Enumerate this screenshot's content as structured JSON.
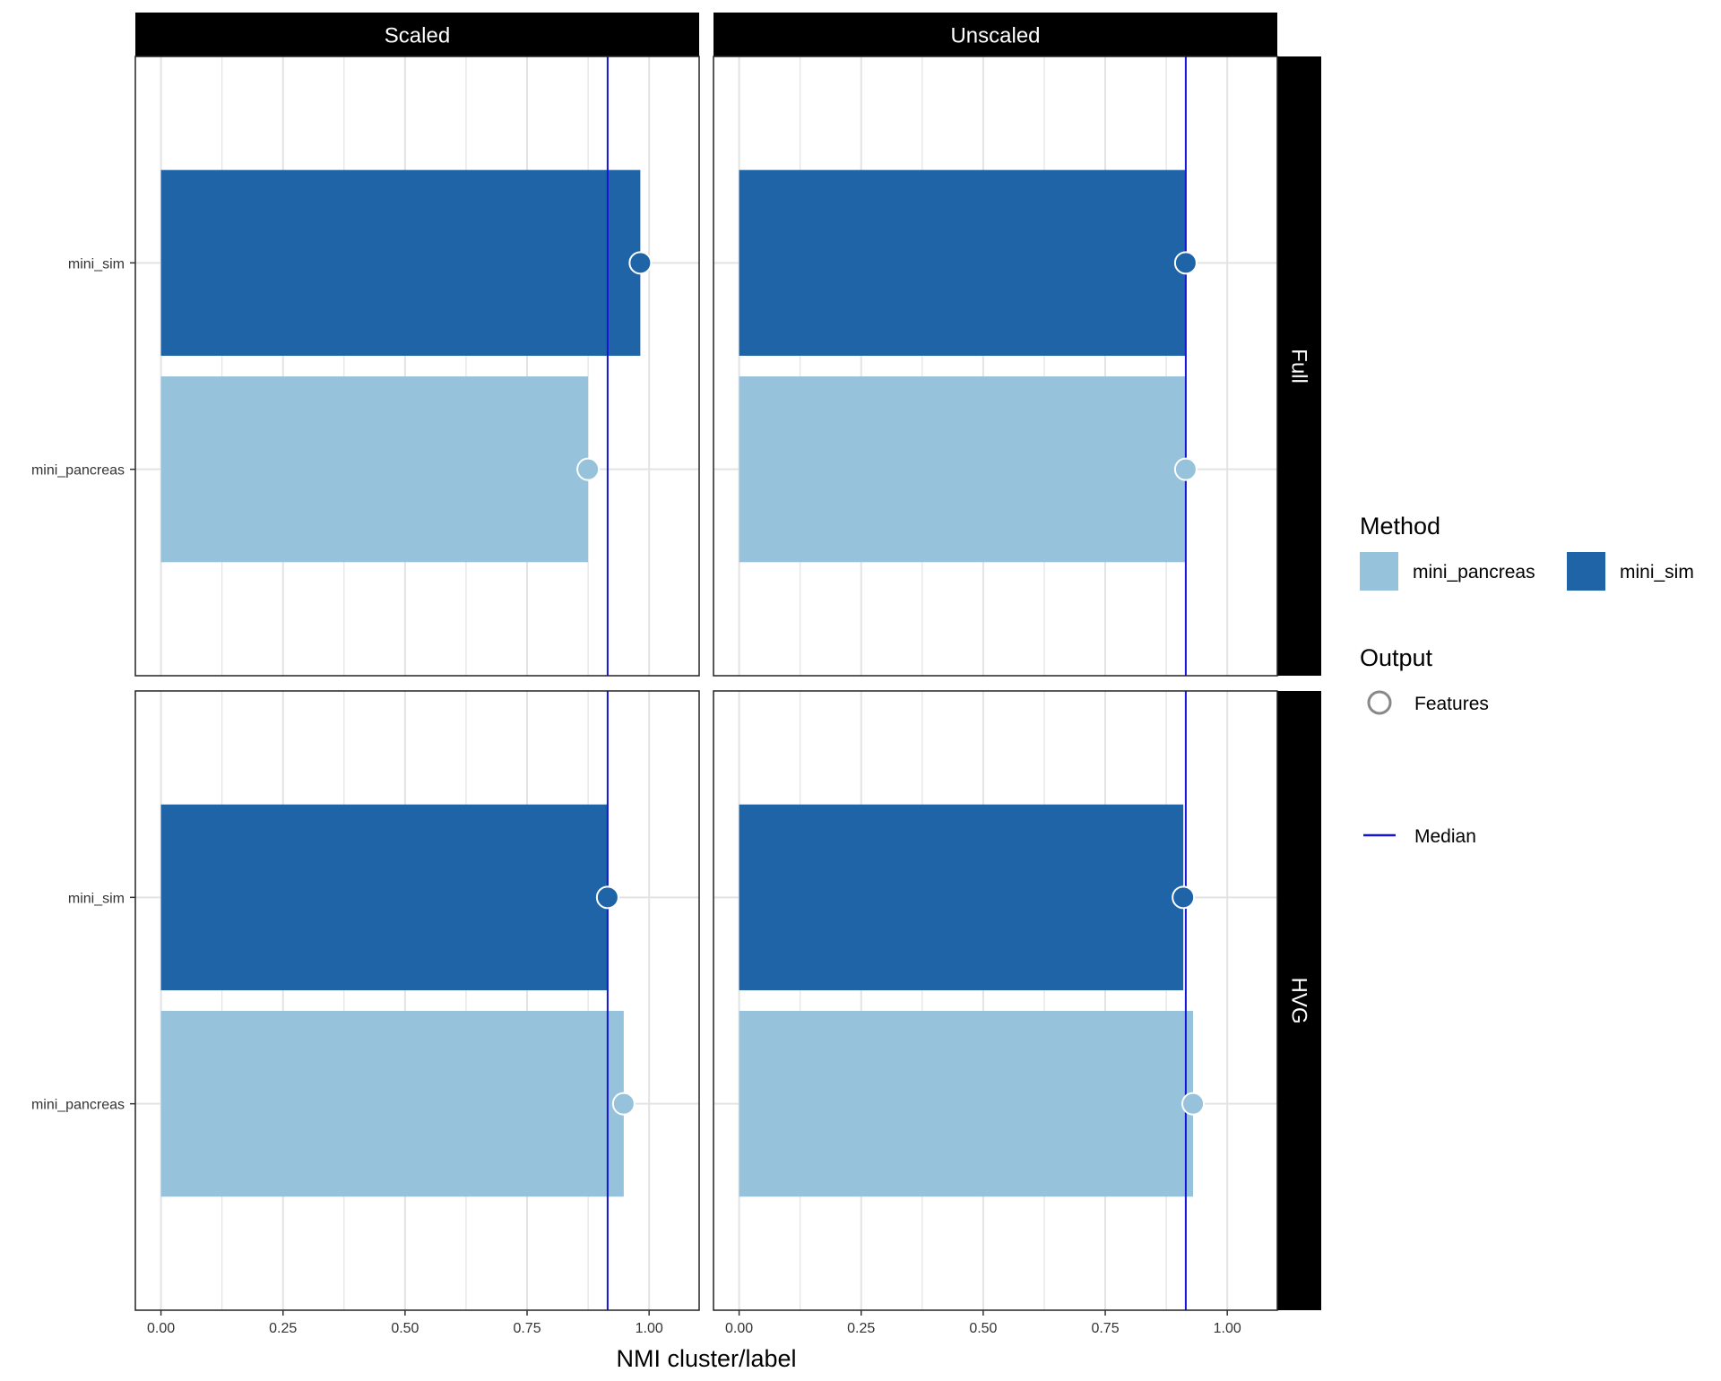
{
  "chart_data": {
    "type": "bar",
    "orientation": "horizontal",
    "xlabel": "NMI cluster/label",
    "ylabel": "",
    "xlim": [
      0,
      1.05
    ],
    "x_ticks": [
      "0.00",
      "0.25",
      "0.50",
      "0.75",
      "1.00"
    ],
    "x_tick_values": [
      0,
      0.25,
      0.5,
      0.75,
      1.0
    ],
    "categories": [
      "mini_sim",
      "mini_pancreas"
    ],
    "grid": true,
    "column_facets": [
      "Scaled",
      "Unscaled"
    ],
    "row_facets": [
      "Full",
      "HVG"
    ],
    "colors": {
      "mini_pancreas": "#96c2db",
      "mini_sim": "#1f64a6",
      "median": "#1515d6",
      "strip": "#000000",
      "grid": "#e3e3e3"
    },
    "panels": [
      {
        "column": "Scaled",
        "row": "Full",
        "median": 0.915,
        "values": {
          "mini_sim": 0.982,
          "mini_pancreas": 0.875
        }
      },
      {
        "column": "Unscaled",
        "row": "Full",
        "median": 0.915,
        "values": {
          "mini_sim": 0.915,
          "mini_pancreas": 0.915
        }
      },
      {
        "column": "Scaled",
        "row": "HVG",
        "median": 0.915,
        "values": {
          "mini_sim": 0.915,
          "mini_pancreas": 0.948
        }
      },
      {
        "column": "Unscaled",
        "row": "HVG",
        "median": 0.915,
        "values": {
          "mini_sim": 0.91,
          "mini_pancreas": 0.93
        }
      }
    ],
    "legend": {
      "placement": "right",
      "method_title": "Method",
      "method_items": [
        "mini_pancreas",
        "mini_sim"
      ],
      "output_title": "Output",
      "output_items": [
        "Features"
      ],
      "median_label": "Median"
    }
  }
}
